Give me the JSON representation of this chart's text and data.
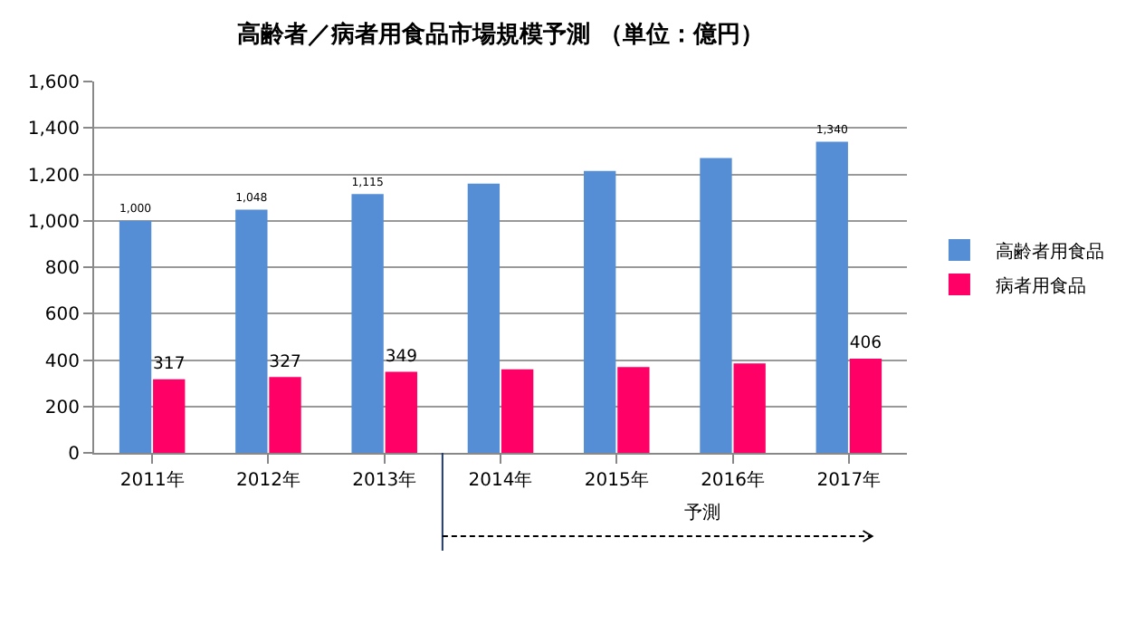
{
  "chart_data": {
    "type": "bar",
    "title": "高齢者／病者用食品市場規模予測 （単位：億円）",
    "categories": [
      "2011年",
      "2012年",
      "2013年",
      "2014年",
      "2015年",
      "2016年",
      "2017年"
    ],
    "series": [
      {
        "name": "高齢者用食品",
        "color": "#558ed5",
        "values": [
          1000,
          1048,
          1115,
          1160,
          1215,
          1270,
          1340
        ],
        "value_labels": [
          "1,000",
          "1,048",
          "1,115",
          null,
          null,
          null,
          "1,340"
        ]
      },
      {
        "name": "病者用食品",
        "color": "#ff0066",
        "values": [
          317,
          327,
          349,
          360,
          370,
          385,
          406
        ],
        "value_labels": [
          "317",
          "327",
          "349",
          null,
          null,
          null,
          "406"
        ]
      }
    ],
    "ylim": [
      0,
      1600
    ],
    "yticks": [
      {
        "value": 0,
        "label": "0"
      },
      {
        "value": 200,
        "label": "200"
      },
      {
        "value": 400,
        "label": "400"
      },
      {
        "value": 600,
        "label": "600"
      },
      {
        "value": 800,
        "label": "800"
      },
      {
        "value": 1000,
        "label": "1,000"
      },
      {
        "value": 1200,
        "label": "1,200"
      },
      {
        "value": 1400,
        "label": "1,400"
      },
      {
        "value": 1600,
        "label": "1,600"
      }
    ],
    "grid": "y",
    "legend": "right",
    "annotations": [
      "予測"
    ]
  }
}
